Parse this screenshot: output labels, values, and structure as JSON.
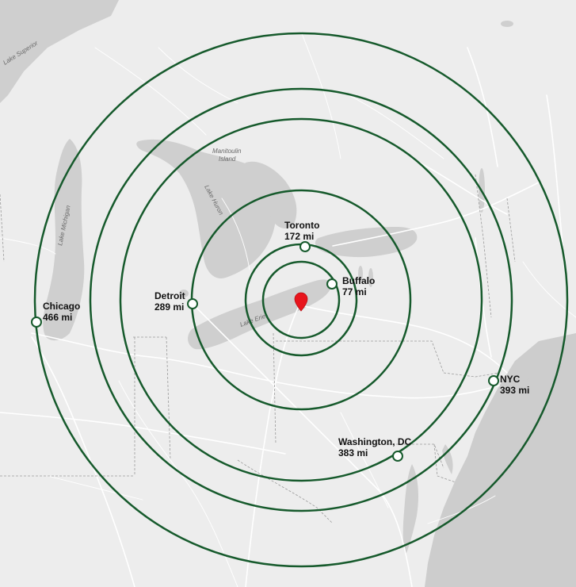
{
  "map": {
    "colors": {
      "land": "#ededed",
      "water": "#cfcfcf",
      "ring": "#165a2c",
      "pin": "#e8141c",
      "marker_fill": "#ffffff",
      "text": "#111111"
    },
    "geo_labels": {
      "lake_superior": "Lake Superior",
      "manitoulin_line1": "Manitoulin",
      "manitoulin_line2": "Island",
      "lake_huron": "Lake Huron",
      "lake_michigan": "Lake Michigan",
      "lake_erie": "Lake Erie"
    },
    "center_pin": {
      "icon": "map-pin-icon"
    },
    "rings_miles": [
      77,
      172,
      289,
      383,
      393,
      466
    ],
    "cities": [
      {
        "id": "chicago",
        "name": "Chicago",
        "distance": "466 mi"
      },
      {
        "id": "detroit",
        "name": "Detroit",
        "distance": "289 mi"
      },
      {
        "id": "toronto",
        "name": "Toronto",
        "distance": "172 mi"
      },
      {
        "id": "buffalo",
        "name": "Buffalo",
        "distance": "77 mi"
      },
      {
        "id": "nyc",
        "name": "NYC",
        "distance": "393 mi"
      },
      {
        "id": "washington",
        "name": "Washington, DC",
        "distance": "383 mi"
      }
    ]
  }
}
